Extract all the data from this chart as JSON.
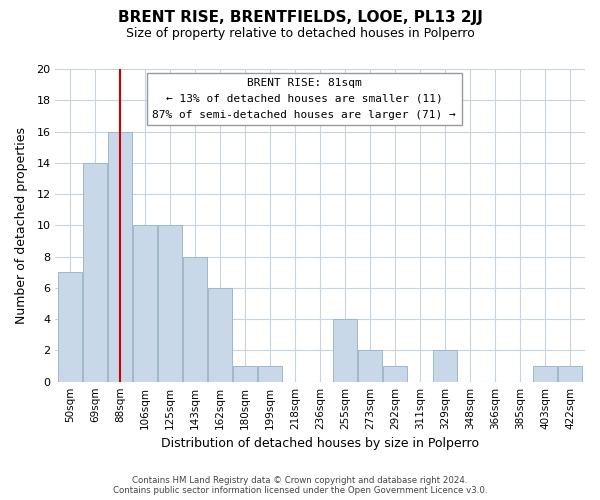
{
  "title": "BRENT RISE, BRENTFIELDS, LOOE, PL13 2JJ",
  "subtitle": "Size of property relative to detached houses in Polperro",
  "xlabel": "Distribution of detached houses by size in Polperro",
  "ylabel": "Number of detached properties",
  "footer_line1": "Contains HM Land Registry data © Crown copyright and database right 2024.",
  "footer_line2": "Contains public sector information licensed under the Open Government Licence v3.0.",
  "bin_labels": [
    "50sqm",
    "69sqm",
    "88sqm",
    "106sqm",
    "125sqm",
    "143sqm",
    "162sqm",
    "180sqm",
    "199sqm",
    "218sqm",
    "236sqm",
    "255sqm",
    "273sqm",
    "292sqm",
    "311sqm",
    "329sqm",
    "348sqm",
    "366sqm",
    "385sqm",
    "403sqm",
    "422sqm"
  ],
  "bar_heights": [
    7,
    14,
    16,
    10,
    10,
    8,
    6,
    1,
    1,
    0,
    0,
    4,
    2,
    1,
    0,
    2,
    0,
    0,
    0,
    1,
    1
  ],
  "bar_color": "#c8d8e8",
  "bar_edge_color": "#a0b8cc",
  "vline_x_index": 2,
  "vline_color": "#cc0000",
  "annotation_title": "BRENT RISE: 81sqm",
  "annotation_line1": "← 13% of detached houses are smaller (11)",
  "annotation_line2": "87% of semi-detached houses are larger (71) →",
  "annotation_box_color": "#ffffff",
  "annotation_box_edge": "#999999",
  "ylim": [
    0,
    20
  ],
  "yticks": [
    0,
    2,
    4,
    6,
    8,
    10,
    12,
    14,
    16,
    18,
    20
  ],
  "background_color": "#ffffff",
  "grid_color": "#c8d4e0"
}
